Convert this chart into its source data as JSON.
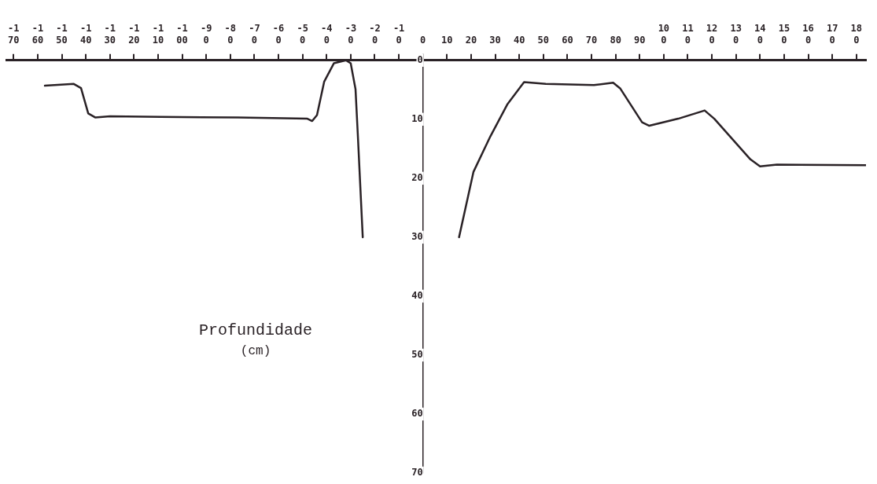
{
  "chart_data": {
    "type": "line",
    "ylabel": "Profundidade (cm)",
    "x": [
      -157,
      -145,
      -142,
      -139,
      -136,
      -130,
      -109,
      -77,
      -48,
      -46,
      -44,
      -41,
      -37,
      -32,
      -30,
      -28,
      -27,
      -25,
      null,
      15,
      21,
      28,
      35,
      42,
      51,
      71,
      79,
      82,
      91,
      94,
      106,
      117,
      121,
      136,
      140,
      147,
      184
    ],
    "series": [
      {
        "color": "#2a2226",
        "values": [
          4.3,
          4.0,
          4.7,
          9.0,
          9.7,
          9.5,
          9.6,
          9.7,
          9.9,
          10.3,
          9.3,
          3.6,
          0.5,
          0,
          0.5,
          4.9,
          13,
          30,
          null,
          30,
          18.9,
          12.9,
          7.5,
          3.7,
          4.0,
          4.2,
          3.8,
          4.8,
          10.5,
          11.1,
          9.9,
          8.5,
          9.9,
          16.8,
          18,
          17.7,
          17.8
        ]
      }
    ],
    "xlim": [
      -173,
      184
    ],
    "xticks": [
      -170,
      -160,
      -150,
      -140,
      -130,
      -120,
      -110,
      -100,
      -90,
      -80,
      -70,
      -60,
      -50,
      -40,
      -30,
      -20,
      -10,
      0,
      10,
      20,
      30,
      40,
      50,
      60,
      70,
      80,
      90,
      100,
      110,
      120,
      130,
      140,
      150,
      160,
      170,
      180
    ],
    "ylim": [
      70,
      0
    ],
    "yticks": [
      0,
      10,
      20,
      30,
      40,
      50,
      60,
      70
    ],
    "marker": "none",
    "line_style": "solid",
    "grid": false,
    "legend": false
  }
}
